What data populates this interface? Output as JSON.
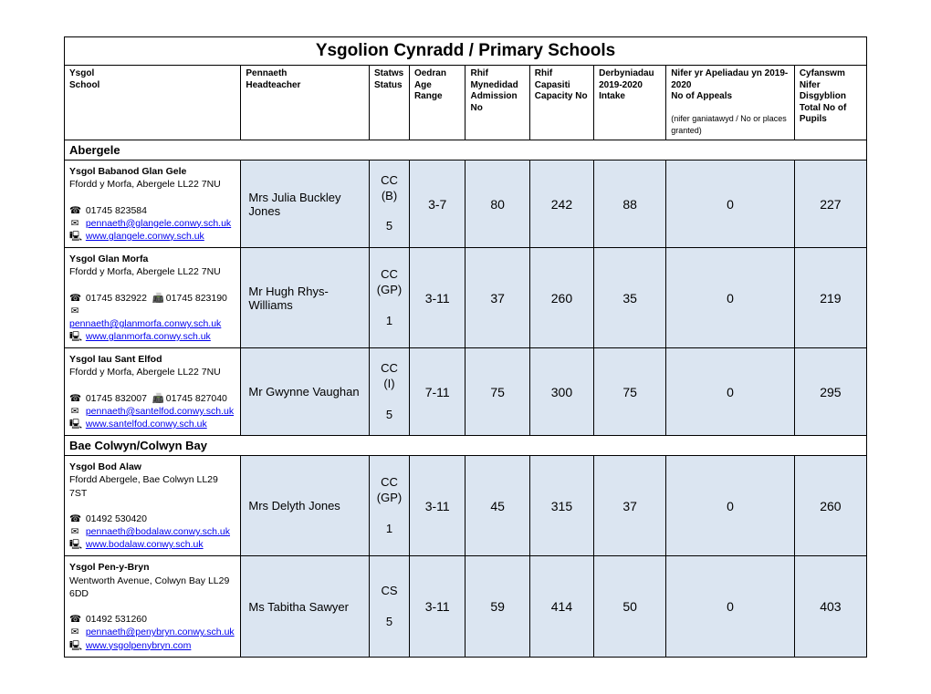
{
  "title": "Ysgolion Cynradd / Primary Schools",
  "headers": {
    "school": {
      "w": "Ysgol",
      "e": "School"
    },
    "head": {
      "w": "Pennaeth",
      "e": "Headteacher"
    },
    "status": {
      "w": "Statws",
      "e": "Status"
    },
    "age": {
      "w": "Oedran",
      "e": "Age Range"
    },
    "admission": {
      "w": "Rhif Mynedidad",
      "e": "Admission No"
    },
    "capacity": {
      "w": "Rhif Capasiti",
      "e": "Capacity No"
    },
    "intake": {
      "w": "Derbyniadau 2019-2020",
      "e": "Intake"
    },
    "appeals": {
      "w": "Nifer yr Apeliadau yn 2019-2020",
      "e": "No of Appeals",
      "sub": "(nifer ganiatawyd / No or places granted)"
    },
    "pupils": {
      "w": "Cyfanswm Nifer Disgyblion",
      "e": "Total No of Pupils"
    }
  },
  "regions": [
    {
      "name": "Abergele",
      "schools": [
        {
          "name": "Ysgol Babanod Glan Gele",
          "addr": "Ffordd y Morfa, Abergele LL22 7NU",
          "tel": "01745 823584",
          "fax": "",
          "email": "pennaeth@glangele.conwy.sch.uk",
          "web": "www.glangele.conwy.sch.uk",
          "head": "Mrs Julia Buckley Jones",
          "status1": "CC",
          "status2": "(B)",
          "status3": "5",
          "age": "3-7",
          "admission": "80",
          "capacity": "242",
          "intake": "88",
          "appeals": "0",
          "pupils": "227"
        },
        {
          "name": "Ysgol Glan Morfa",
          "addr": "Ffordd y Morfa, Abergele LL22 7NU",
          "tel": "01745 832922",
          "fax": "01745 823190",
          "email": "pennaeth@glanmorfa.conwy.sch.uk",
          "web": "www.glanmorfa.conwy.sch.uk",
          "head": "Mr Hugh Rhys-Williams",
          "status1": "CC",
          "status2": "(GP)",
          "status3": "1",
          "age": "3-11",
          "admission": "37",
          "capacity": "260",
          "intake": "35",
          "appeals": "0",
          "pupils": "219"
        },
        {
          "name": "Ysgol Iau Sant Elfod",
          "addr": "Ffordd y Morfa, Abergele LL22 7NU",
          "tel": "01745 832007",
          "fax": "01745 827040",
          "email": "pennaeth@santelfod.conwy.sch.uk",
          "web": "www.santelfod.conwy.sch.uk",
          "head": "Mr Gwynne Vaughan",
          "status1": "CC",
          "status2": "(I)",
          "status3": "5",
          "age": "7-11",
          "admission": "75",
          "capacity": "300",
          "intake": "75",
          "appeals": "0",
          "pupils": "295"
        }
      ]
    },
    {
      "name": "Bae Colwyn/Colwyn Bay",
      "schools": [
        {
          "name": "Ysgol Bod Alaw",
          "addr": "Ffordd Abergele, Bae Colwyn LL29 7ST",
          "tel": "01492 530420",
          "fax": "",
          "email": "pennaeth@bodalaw.conwy.sch.uk",
          "web": "www.bodalaw.conwy.sch.uk",
          "head": "Mrs Delyth Jones",
          "status1": "CC",
          "status2": "(GP)",
          "status3": "1",
          "age": "3-11",
          "admission": "45",
          "capacity": "315",
          "intake": "37",
          "appeals": "0",
          "pupils": "260"
        },
        {
          "name": "Ysgol Pen-y-Bryn",
          "addr": "Wentworth Avenue, Colwyn Bay LL29 6DD",
          "tel": "01492 531260",
          "fax": "",
          "email": "pennaeth@penybryn.conwy.sch.uk",
          "web": "www.ysgolpenybryn.com",
          "head": "Ms Tabitha Sawyer",
          "status1": "CS",
          "status2": "",
          "status3": "5",
          "age": "3-11",
          "admission": "59",
          "capacity": "414",
          "intake": "50",
          "appeals": "0",
          "pupils": "403"
        }
      ]
    }
  ],
  "icons": {
    "tel": "☎",
    "fax": "📠",
    "email": "✉",
    "web": "🖳"
  }
}
